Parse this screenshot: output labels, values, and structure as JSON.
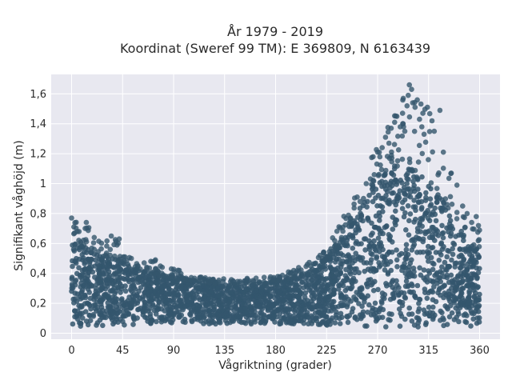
{
  "chart_data": {
    "type": "scatter",
    "title_lines": [
      "År 1979 - 2019",
      "Koordinat (Sweref 99 TM): E 369809, N 6163439"
    ],
    "xlabel": "Vågriktning (grader)",
    "ylabel": "Signifikant våghöjd (m)",
    "xlim": [
      -18,
      378
    ],
    "ylim": [
      -0.04,
      1.73
    ],
    "x_ticks": [
      0,
      45,
      90,
      135,
      180,
      225,
      270,
      315,
      360
    ],
    "x_tick_labels": [
      "0",
      "45",
      "90",
      "135",
      "180",
      "225",
      "270",
      "315",
      "360"
    ],
    "y_ticks": [
      0,
      0.2,
      0.4,
      0.6,
      0.8,
      1.0,
      1.2,
      1.4,
      1.6
    ],
    "y_tick_labels": [
      "0",
      "0,2",
      "0,4",
      "0,6",
      "0,8",
      "1",
      "1,2",
      "1,4",
      "1,6"
    ],
    "grid": true,
    "legend": "none",
    "colors": {
      "marker": "#34566d",
      "plot_background": "#e8e8f0",
      "grid": "#ffffff"
    },
    "envelope": {
      "direction": [
        0,
        15,
        30,
        45,
        60,
        75,
        90,
        105,
        120,
        135,
        150,
        165,
        180,
        195,
        210,
        225,
        240,
        255,
        270,
        285,
        300,
        315,
        330,
        345,
        360
      ],
      "dense_max_hs": [
        0.62,
        0.56,
        0.52,
        0.48,
        0.43,
        0.39,
        0.37,
        0.35,
        0.34,
        0.33,
        0.33,
        0.34,
        0.35,
        0.37,
        0.41,
        0.49,
        0.66,
        0.87,
        1.05,
        1.12,
        1.1,
        1.03,
        0.85,
        0.68,
        0.54
      ],
      "outlier_max_hs": [
        0.77,
        0.73,
        0.7,
        0.65,
        0.55,
        0.49,
        0.44,
        0.39,
        0.37,
        0.37,
        0.37,
        0.37,
        0.38,
        0.42,
        0.49,
        0.56,
        0.78,
        1.01,
        1.32,
        1.5,
        1.66,
        1.52,
        1.2,
        0.8,
        0.74
      ],
      "min_hs": [
        0.04,
        0.04,
        0.05,
        0.05,
        0.06,
        0.06,
        0.06,
        0.06,
        0.06,
        0.06,
        0.06,
        0.06,
        0.06,
        0.06,
        0.06,
        0.05,
        0.05,
        0.04,
        0.04,
        0.04,
        0.03,
        0.03,
        0.04,
        0.04,
        0.04
      ]
    },
    "outliers": [
      {
        "x": 0,
        "y": 0.77
      },
      {
        "x": 2,
        "y": 0.71
      },
      {
        "x": 5,
        "y": 0.68
      },
      {
        "x": 12,
        "y": 0.7
      },
      {
        "x": 13,
        "y": 0.74
      },
      {
        "x": 20,
        "y": 0.64
      },
      {
        "x": 35,
        "y": 0.65
      },
      {
        "x": 42,
        "y": 0.63
      },
      {
        "x": 47,
        "y": 0.51
      },
      {
        "x": 64,
        "y": 0.47
      },
      {
        "x": 80,
        "y": 0.44
      },
      {
        "x": 88,
        "y": 0.43
      },
      {
        "x": 118,
        "y": 0.37
      },
      {
        "x": 155,
        "y": 0.36
      },
      {
        "x": 182,
        "y": 0.38
      },
      {
        "x": 196,
        "y": 0.42
      },
      {
        "x": 208,
        "y": 0.46
      },
      {
        "x": 232,
        "y": 0.58
      },
      {
        "x": 246,
        "y": 0.77
      },
      {
        "x": 252,
        "y": 0.91
      },
      {
        "x": 260,
        "y": 1.0
      },
      {
        "x": 267,
        "y": 1.06
      },
      {
        "x": 270,
        "y": 1.21
      },
      {
        "x": 274,
        "y": 1.24
      },
      {
        "x": 277,
        "y": 1.31
      },
      {
        "x": 280,
        "y": 1.27
      },
      {
        "x": 282,
        "y": 1.37
      },
      {
        "x": 285,
        "y": 1.41
      },
      {
        "x": 287,
        "y": 1.45
      },
      {
        "x": 290,
        "y": 1.38
      },
      {
        "x": 292,
        "y": 1.47
      },
      {
        "x": 294,
        "y": 1.35
      },
      {
        "x": 296,
        "y": 1.52
      },
      {
        "x": 297,
        "y": 1.59
      },
      {
        "x": 298,
        "y": 1.66
      },
      {
        "x": 300,
        "y": 1.63
      },
      {
        "x": 301,
        "y": 1.54
      },
      {
        "x": 303,
        "y": 1.51
      },
      {
        "x": 305,
        "y": 1.56
      },
      {
        "x": 307,
        "y": 1.43
      },
      {
        "x": 309,
        "y": 1.38
      },
      {
        "x": 311,
        "y": 1.33
      },
      {
        "x": 314,
        "y": 1.51
      },
      {
        "x": 318,
        "y": 1.42
      },
      {
        "x": 320,
        "y": 1.35
      },
      {
        "x": 325,
        "y": 1.49
      },
      {
        "x": 328,
        "y": 1.21
      },
      {
        "x": 335,
        "y": 1.07
      },
      {
        "x": 340,
        "y": 0.99
      },
      {
        "x": 345,
        "y": 0.85
      },
      {
        "x": 349,
        "y": 0.8
      },
      {
        "x": 353,
        "y": 0.74
      },
      {
        "x": 357,
        "y": 0.78
      },
      {
        "x": 359,
        "y": 0.72
      }
    ]
  }
}
